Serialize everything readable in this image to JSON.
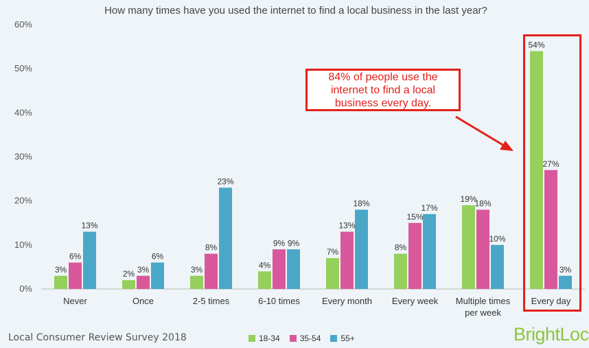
{
  "chart_data": {
    "type": "bar",
    "title": "How many times have you used the internet to find a local business in the last year?",
    "categories": [
      "Never",
      "Once",
      "2-5 times",
      "6-10 times",
      "Every month",
      "Every week",
      "Multiple times per week",
      "Every day"
    ],
    "category_lines": [
      [
        "Never"
      ],
      [
        "Once"
      ],
      [
        "2-5 times"
      ],
      [
        "6-10 times"
      ],
      [
        "Every month"
      ],
      [
        "Every week"
      ],
      [
        "Multiple times",
        "per week"
      ],
      [
        "Every day"
      ]
    ],
    "series": [
      {
        "name": "18-34",
        "color": "#95cf5c",
        "values": [
          3,
          2,
          3,
          4,
          7,
          8,
          19,
          54
        ]
      },
      {
        "name": "35-54",
        "color": "#d9589c",
        "values": [
          6,
          3,
          8,
          9,
          13,
          15,
          18,
          27
        ]
      },
      {
        "name": "55+",
        "color": "#4aa7c8",
        "values": [
          13,
          6,
          23,
          9,
          18,
          17,
          10,
          3
        ]
      }
    ],
    "ylim": [
      0,
      60
    ],
    "yticks": [
      "0%",
      "10%",
      "20%",
      "30%",
      "40%",
      "50%",
      "60%"
    ],
    "value_suffix": "%",
    "grid": false,
    "legend_placement": "bottom"
  },
  "source": "Local Consumer Review Survey 2018",
  "brand": "BrightLocal",
  "annotation": {
    "text": "84% of people use the\ninternet to find a local\nbusiness every day.",
    "color": "#e3201b",
    "highlight_category": "Every day"
  }
}
